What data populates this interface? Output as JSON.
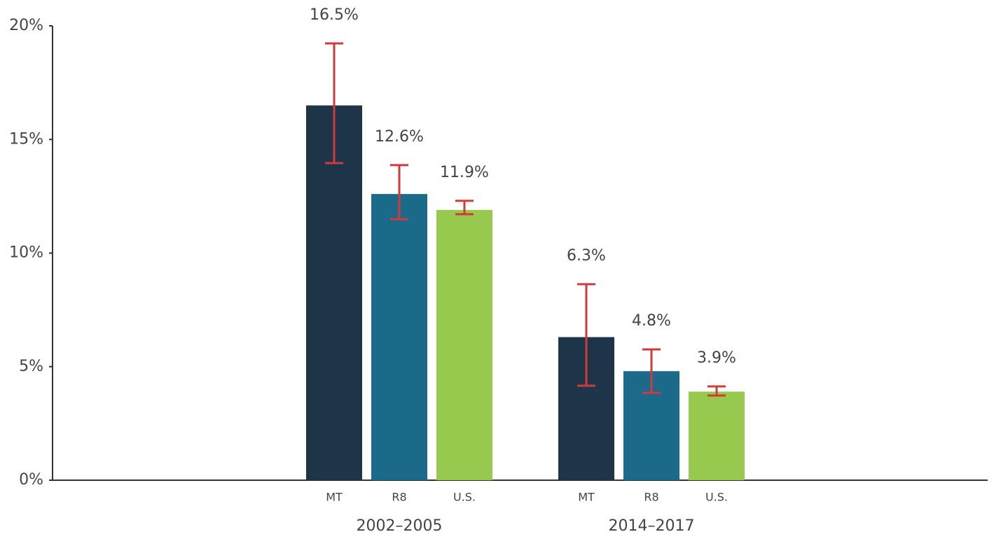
{
  "chart_data": {
    "type": "bar",
    "categories": [
      "2002–2005",
      "2014–2017"
    ],
    "series": [
      {
        "name": "MT",
        "color": "#1e3549",
        "values": [
          16.5,
          6.3
        ],
        "value_labels": [
          "16.5%",
          "6.3%"
        ],
        "error_low": [
          13.96,
          4.16
        ],
        "error_high": [
          19.23,
          8.63
        ]
      },
      {
        "name": "R8",
        "color": "#1b6a8a",
        "values": [
          12.6,
          4.8
        ],
        "value_labels": [
          "12.6%",
          "4.8%"
        ],
        "error_low": [
          11.49,
          3.85
        ],
        "error_high": [
          13.87,
          5.76
        ]
      },
      {
        "name": "U.S.",
        "color": "#97c94f",
        "values": [
          11.9,
          3.9
        ],
        "value_labels": [
          "11.9%",
          "3.9%"
        ],
        "error_low": [
          11.71,
          3.73
        ],
        "error_high": [
          12.3,
          4.13
        ]
      }
    ],
    "error_color": "#d03a3a",
    "ylim": [
      0,
      20
    ],
    "yticks": [
      {
        "value": 0,
        "label": "0%"
      },
      {
        "value": 5,
        "label": "5%"
      },
      {
        "value": 10,
        "label": "10%"
      },
      {
        "value": 15,
        "label": "15%"
      },
      {
        "value": 20,
        "label": "20%"
      }
    ]
  }
}
